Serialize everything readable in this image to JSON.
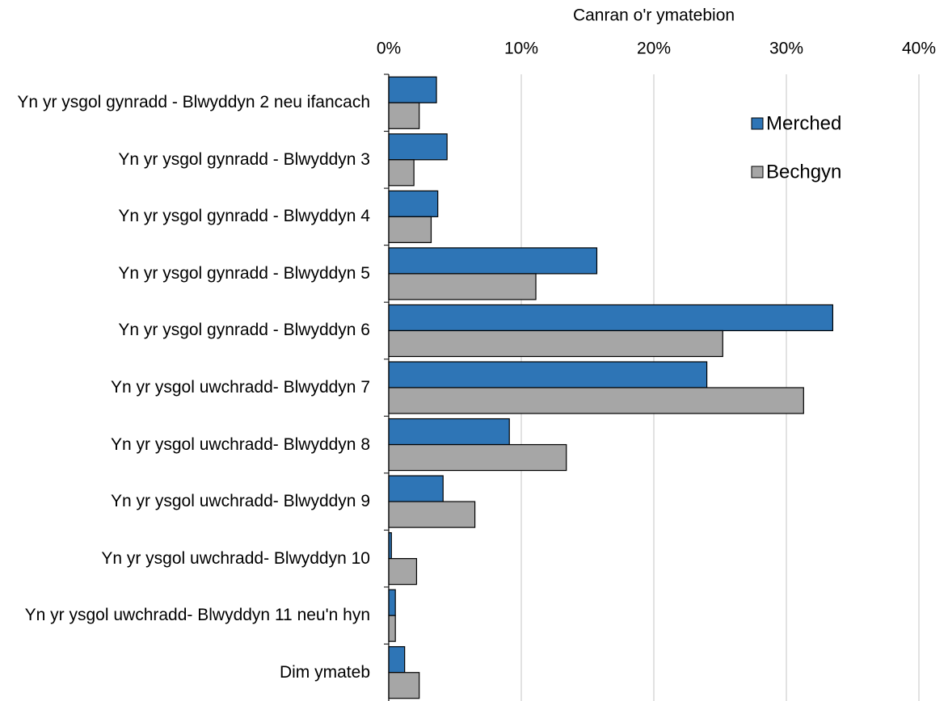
{
  "chart_data": {
    "type": "hbar",
    "title": "Canran o'r ymatebion",
    "categories": [
      "Yn yr ysgol gynradd - Blwyddyn 2 neu ifancach",
      "Yn yr ysgol gynradd - Blwyddyn 3",
      "Yn yr ysgol gynradd - Blwyddyn 4",
      "Yn yr ysgol gynradd - Blwyddyn 5",
      "Yn yr ysgol gynradd - Blwyddyn 6",
      "Yn yr ysgol uwchradd- Blwyddyn 7",
      "Yn yr ysgol uwchradd- Blwyddyn 8",
      "Yn yr ysgol uwchradd- Blwyddyn 9",
      "Yn yr ysgol uwchradd- Blwyddyn 10",
      "Yn yr ysgol uwchradd- Blwyddyn 11 neu'n hyn",
      "Dim ymateb"
    ],
    "series": [
      {
        "name": "Merched",
        "color": "#2e75b6",
        "values": [
          3.6,
          4.4,
          3.7,
          15.7,
          33.5,
          24.0,
          9.1,
          4.1,
          0.2,
          0.5,
          1.2
        ]
      },
      {
        "name": "Bechgyn",
        "color": "#a6a6a6",
        "values": [
          2.3,
          1.9,
          3.2,
          11.1,
          25.2,
          31.3,
          13.4,
          6.5,
          2.1,
          0.5,
          2.3
        ]
      }
    ],
    "xlim": [
      0,
      40
    ],
    "xticks": [
      {
        "value": 0,
        "label": "0%"
      },
      {
        "value": 10,
        "label": "10%"
      },
      {
        "value": 20,
        "label": "20%"
      },
      {
        "value": 30,
        "label": "30%"
      },
      {
        "value": 40,
        "label": "40%"
      }
    ],
    "grid": true,
    "legend": "upper right"
  }
}
